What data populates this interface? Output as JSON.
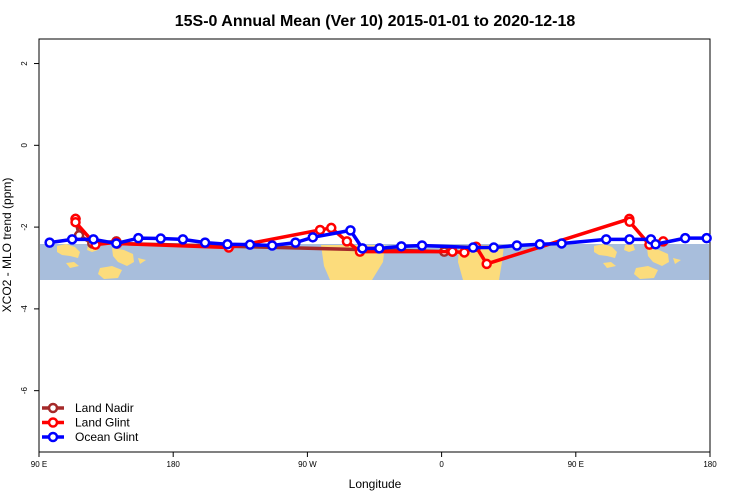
{
  "chart_data": {
    "type": "line",
    "title": "15S-0 Annual Mean (Ver 10)   2015-01-01 to 2020-12-18",
    "xlabel": "Longitude",
    "ylabel": "XCO2 - MLO trend (ppm)",
    "xlim": [
      90,
      450
    ],
    "ylim": [
      -7.5,
      2.6
    ],
    "x_ticks": [
      {
        "value": 90,
        "label": "90 E"
      },
      {
        "value": 162,
        "label": "180"
      },
      {
        "value": 234,
        "label": "90 W"
      },
      {
        "value": 306,
        "label": "0"
      },
      {
        "value": 378,
        "label": "90 E"
      },
      {
        "value": 450,
        "label": "180"
      }
    ],
    "y_ticks": [
      2,
      0,
      -2,
      -4,
      -6
    ],
    "legend_position": "bottom-left",
    "map_band": {
      "lat_range": "15S-0",
      "ocean_color": "#a8bedc",
      "land_color": "#fcdc7c"
    },
    "series": [
      {
        "name": "Land Nadir",
        "color": "#a52a2a",
        "points": [
          {
            "x": 109.6,
            "y": -1.8
          },
          {
            "x": 111.5,
            "y": -2.2
          },
          {
            "x": 118.6,
            "y": -2.4
          },
          {
            "x": 131.5,
            "y": -2.35
          },
          {
            "x": 131.9,
            "y": -2.4
          },
          {
            "x": 307.4,
            "y": -2.6
          },
          {
            "x": 311.8,
            "y": -2.6
          }
        ]
      },
      {
        "name": "Land Glint",
        "color": "#ff0000",
        "points": [
          {
            "x": 109.6,
            "y": -1.8
          },
          {
            "x": 109.6,
            "y": -1.88
          },
          {
            "x": 120.3,
            "y": -2.43
          },
          {
            "x": 131.5,
            "y": -2.37
          },
          {
            "x": 131.9,
            "y": -2.4
          },
          {
            "x": 191.8,
            "y": -2.5
          },
          {
            "x": 240.8,
            "y": -2.07
          },
          {
            "x": 246.8,
            "y": -2.02
          },
          {
            "x": 255.2,
            "y": -2.35
          },
          {
            "x": 262.2,
            "y": -2.6
          },
          {
            "x": 311.8,
            "y": -2.6
          },
          {
            "x": 318.2,
            "y": -2.62
          },
          {
            "x": 324.5,
            "y": -2.48
          },
          {
            "x": 330.2,
            "y": -2.9
          },
          {
            "x": 406.7,
            "y": -1.8
          },
          {
            "x": 406.9,
            "y": -1.87
          },
          {
            "x": 417.5,
            "y": -2.43
          },
          {
            "x": 424.9,
            "y": -2.35
          }
        ]
      },
      {
        "name": "Ocean Glint",
        "color": "#0000ff",
        "points": [
          {
            "x": 95.7,
            "y": -2.38
          },
          {
            "x": 107.8,
            "y": -2.3
          },
          {
            "x": 119.2,
            "y": -2.3
          },
          {
            "x": 131.5,
            "y": -2.4
          },
          {
            "x": 143.3,
            "y": -2.27
          },
          {
            "x": 155.3,
            "y": -2.28
          },
          {
            "x": 167.2,
            "y": -2.3
          },
          {
            "x": 179.1,
            "y": -2.38
          },
          {
            "x": 191.1,
            "y": -2.42
          },
          {
            "x": 203.2,
            "y": -2.43
          },
          {
            "x": 215.1,
            "y": -2.45
          },
          {
            "x": 227.6,
            "y": -2.38
          },
          {
            "x": 236.9,
            "y": -2.25
          },
          {
            "x": 257.1,
            "y": -2.08
          },
          {
            "x": 263.5,
            "y": -2.52
          },
          {
            "x": 272.6,
            "y": -2.52
          },
          {
            "x": 284.4,
            "y": -2.47
          },
          {
            "x": 295.5,
            "y": -2.45
          },
          {
            "x": 322.9,
            "y": -2.5
          },
          {
            "x": 334.0,
            "y": -2.5
          },
          {
            "x": 346.4,
            "y": -2.45
          },
          {
            "x": 358.7,
            "y": -2.42
          },
          {
            "x": 370.4,
            "y": -2.4
          },
          {
            "x": 394.3,
            "y": -2.3
          },
          {
            "x": 406.8,
            "y": -2.3
          },
          {
            "x": 418.3,
            "y": -2.3
          },
          {
            "x": 420.8,
            "y": -2.42
          },
          {
            "x": 436.7,
            "y": -2.27
          },
          {
            "x": 448.2,
            "y": -2.27
          }
        ]
      }
    ]
  }
}
